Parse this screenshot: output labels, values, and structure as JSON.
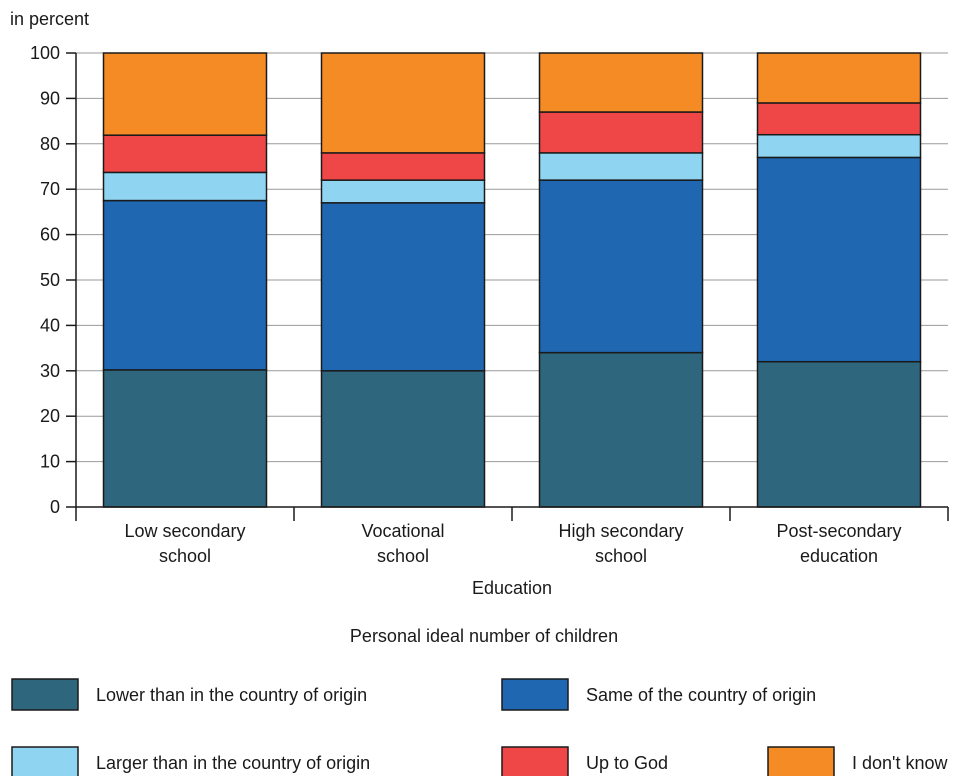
{
  "chart_data": {
    "type": "bar",
    "stacked": true,
    "title": "",
    "ylabel": "in percent",
    "xlabel": "Education",
    "legend_title": "Personal ideal number of children",
    "legend_position": "bottom",
    "grid": true,
    "ylim": [
      0,
      100
    ],
    "yticks": [
      0,
      10,
      20,
      30,
      40,
      50,
      60,
      70,
      80,
      90,
      100
    ],
    "categories": [
      [
        "Low secondary",
        "school"
      ],
      [
        "Vocational",
        "school"
      ],
      [
        "High secondary",
        "school"
      ],
      [
        "Post-secondary",
        "education"
      ]
    ],
    "series": [
      {
        "name": "Lower than in the country of origin",
        "color": "#2e667e",
        "values": [
          30.2,
          30,
          34,
          32
        ]
      },
      {
        "name": "Same of the country of origin",
        "color": "#1f67b0",
        "values": [
          37.3,
          37,
          38,
          45
        ]
      },
      {
        "name": "Larger than in the country of origin",
        "color": "#8fd5f1",
        "values": [
          6.2,
          5,
          6,
          5
        ]
      },
      {
        "name": "Up to God",
        "color": "#ef4648",
        "values": [
          8.2,
          6,
          9,
          7
        ]
      },
      {
        "name": "I don't know",
        "color": "#f58b25",
        "values": [
          18.1,
          22,
          13,
          11
        ]
      }
    ]
  }
}
